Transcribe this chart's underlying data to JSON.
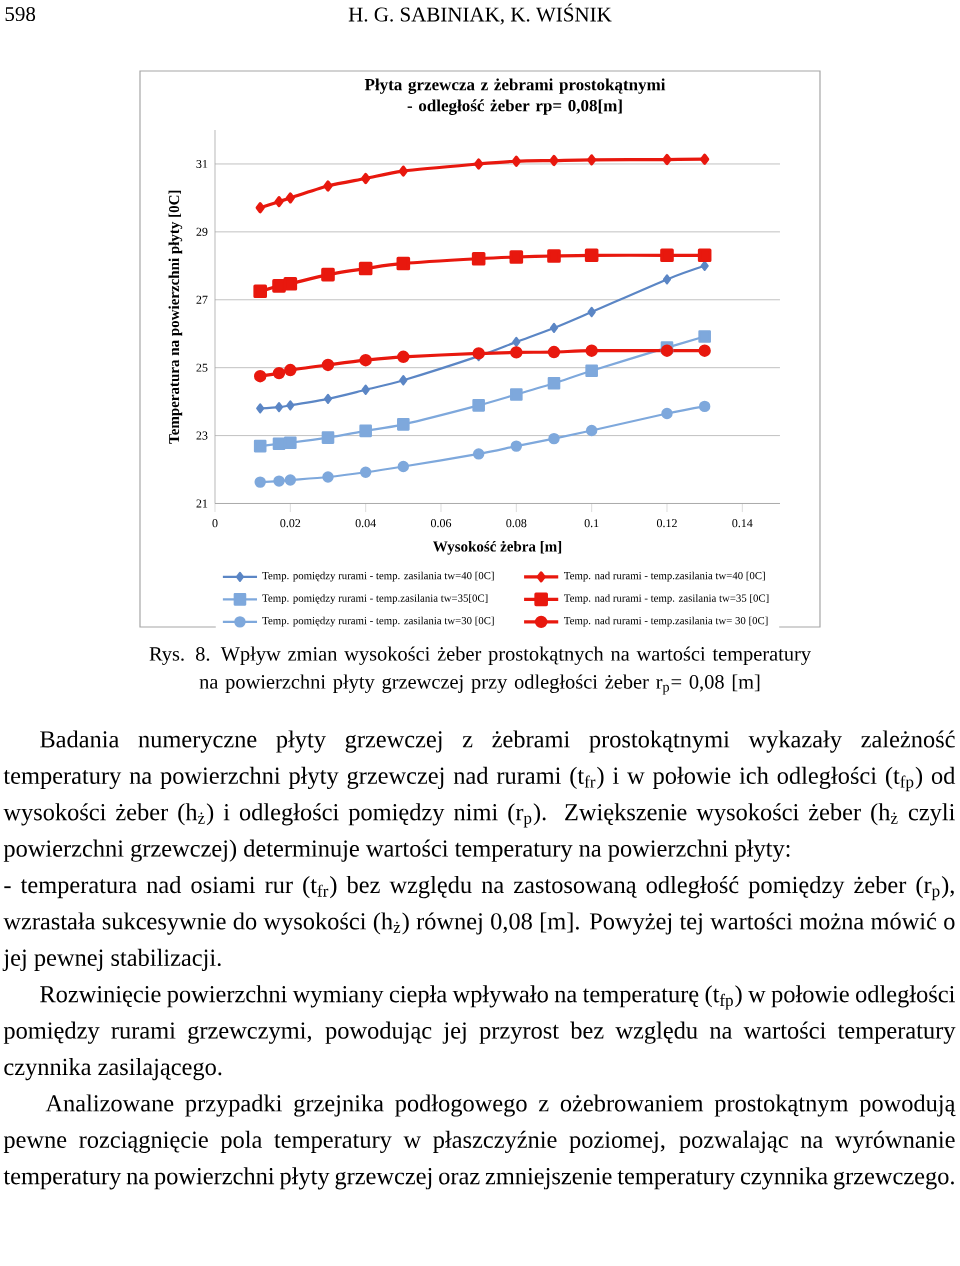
{
  "chart_data": {
    "type": "line",
    "title": "Płyta grzewcza z żebrami prostokątnymi - odległość żeber rp= 0,08[m]",
    "xlabel": "Wysokość żebra [m]",
    "ylabel": "Temperatura na powierzchni płyty [0C]",
    "x": [
      0.012,
      0.017,
      0.02,
      0.03,
      0.04,
      0.05,
      0.07,
      0.08,
      0.09,
      0.1,
      0.12,
      0.13
    ],
    "series": [
      {
        "name": "Temp. pomiędzy rurami - temp. zasilania tw=40 [0C]",
        "color": "#5b86c5",
        "marker": "diamond",
        "values": [
          23.8,
          23.84,
          23.89,
          24.08,
          24.35,
          24.63,
          25.34,
          25.76,
          26.17,
          26.64,
          27.6,
          28.0
        ]
      },
      {
        "name": "Temp. nad rurami - temp.zasilania tw=40 [0C]",
        "color": "#e8180e",
        "marker": "diamond",
        "values": [
          29.71,
          29.89,
          30.0,
          30.35,
          30.57,
          30.79,
          31.0,
          31.08,
          31.1,
          31.12,
          31.13,
          31.14
        ]
      },
      {
        "name": "Temp. pomiędzy rurami - temp.zasilania tw=35[0C]",
        "color": "#7ea8dc",
        "marker": "square",
        "values": [
          22.69,
          22.76,
          22.79,
          22.94,
          23.14,
          23.33,
          23.89,
          24.21,
          24.54,
          24.91,
          25.59,
          25.92
        ]
      },
      {
        "name": "Temp. nad rurami - temp. zasilania tw=35 [0C]",
        "color": "#e8180e",
        "marker": "square",
        "values": [
          27.25,
          27.41,
          27.47,
          27.74,
          27.92,
          28.07,
          28.21,
          28.26,
          28.29,
          28.31,
          28.31,
          28.31
        ]
      },
      {
        "name": "Temp. pomiędzy rurami - temp. zasilania tw=30 [0C]",
        "color": "#7ea8dc",
        "marker": "circle",
        "values": [
          21.63,
          21.66,
          21.69,
          21.78,
          21.92,
          22.09,
          22.46,
          22.69,
          22.91,
          23.15,
          23.65,
          23.86
        ]
      },
      {
        "name": "Temp. nad rurami - temp.zasilania tw= 30 [0C]",
        "color": "#e8180e",
        "marker": "circle",
        "values": [
          24.75,
          24.84,
          24.93,
          25.08,
          25.22,
          25.32,
          25.42,
          25.45,
          25.46,
          25.5,
          25.5,
          25.5
        ]
      }
    ],
    "xlim": [
      0,
      0.15
    ],
    "xticks": [
      0,
      0.02,
      0.04,
      0.06,
      0.08,
      0.1,
      0.12,
      0.14
    ],
    "ylim": [
      21,
      32
    ],
    "yticks": [
      21,
      23,
      25,
      27,
      29,
      31
    ],
    "grid": "y",
    "legend": "bottom",
    "line_style": "solid",
    "annotations": [
      "598",
      "H. G. SABINIAK, K. WIŚNIK",
      "Rys. 8. Wpływ zmian wysokości żeber prostokątnych na wartości temperatury na powierzchni płyty grzewczej przy odległości żeber r$_{p}$= 0,08 [m]",
      "Badania numeryczne płyty grzewczej z żebrami prostokątnymi wykazały zależność temperatury na powierzchni płyty grzewczej nad rurami (t$_{fr}$) i w połowie ich odległości (t$_{fp}$) od wysokości żeber (h$_{ż}$) i odległości pomiędzy nimi (r$_{p}$). Zwiększenie wysokości żeber (h$_{ż}$ czyli powierzchni grzewczej) determinuje wartości temperatury na powierzchni płyty:",
      "- temperatura nad osiami rur (t$_{fr}$) bez względu na zastosowaną odległość pomiędzy żeber (r$_{p}$), wzrastała sukcesywnie do wysokości (h$_{ż}$) równej 0,08 [m]. Powyżej tej wartości można mówić o jej pewnej stabilizacji.",
      "Rozwinięcie powierzchni wymiany ciepła wpływało na temperaturę (t$_{fp}$) w połowie odległości pomiędzy rurami grzewczymi, powodując jej przyrost bez względu na wartości temperatury czynnika zasilającego.",
      "Analizowane przypadki grzejnika podłogowego z ożebrowaniem prostokątnym powodują pewne rozciągnięcie pola temperatury w płaszczyźnie poziomej, pozwalając na wyrównanie temperatury na powierzchni płyty grzewczej oraz zmniejszenie temperatury czynnika grzewczego."
    ]
  }
}
